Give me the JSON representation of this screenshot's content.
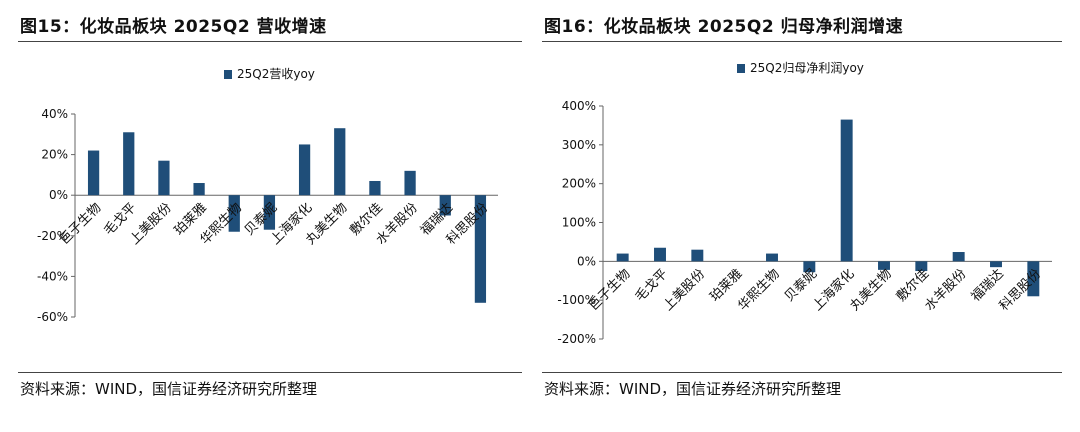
{
  "left": {
    "title": "图15：化妆品板块 2025Q2 营收增速",
    "source": "资料来源：WIND，国信证券经济研究所整理"
  },
  "right": {
    "title": "图16：化妆品板块 2025Q2 归母净利润增速",
    "source": "资料来源：WIND，国信证券经济研究所整理"
  },
  "colors": {
    "bar": "#1f4e79",
    "axis": "#666666"
  },
  "chart_data": [
    {
      "type": "bar",
      "title": "",
      "xlabel": "",
      "ylabel": "",
      "categories": [
        "巨子生物",
        "毛戈平",
        "上美股份",
        "珀莱雅",
        "华熙生物",
        "贝泰妮",
        "上海家化",
        "丸美生物",
        "敷尔佳",
        "水羊股份",
        "福瑞达",
        "科思股份"
      ],
      "series": [
        {
          "name": "25Q2营收yoy",
          "values": [
            22,
            31,
            17,
            6,
            -18,
            -17,
            25,
            33,
            7,
            12,
            -10,
            -53
          ]
        }
      ],
      "ylim": [
        -60,
        40
      ],
      "yticks": [
        -60,
        -40,
        -20,
        0,
        20,
        40
      ],
      "ytick_labels": [
        "-60%",
        "-40%",
        "-20%",
        "0%",
        "20%",
        "40%"
      ],
      "legend": "top-center",
      "grid": false
    },
    {
      "type": "bar",
      "title": "",
      "xlabel": "",
      "ylabel": "",
      "categories": [
        "巨子生物",
        "毛戈平",
        "上美股份",
        "珀莱雅",
        "华熙生物",
        "贝泰妮",
        "上海家化",
        "丸美生物",
        "敷尔佳",
        "水羊股份",
        "福瑞达",
        "科思股份"
      ],
      "series": [
        {
          "name": "25Q2归母净利润yoy",
          "values": [
            20,
            35,
            30,
            0,
            20,
            -28,
            365,
            -22,
            -25,
            24,
            -15,
            -90
          ]
        }
      ],
      "ylim": [
        -200,
        400
      ],
      "yticks": [
        -200,
        -100,
        0,
        100,
        200,
        300,
        400
      ],
      "ytick_labels": [
        "-200%",
        "-100%",
        "0%",
        "100%",
        "200%",
        "300%",
        "400%"
      ],
      "legend": "top-center",
      "grid": false
    }
  ]
}
